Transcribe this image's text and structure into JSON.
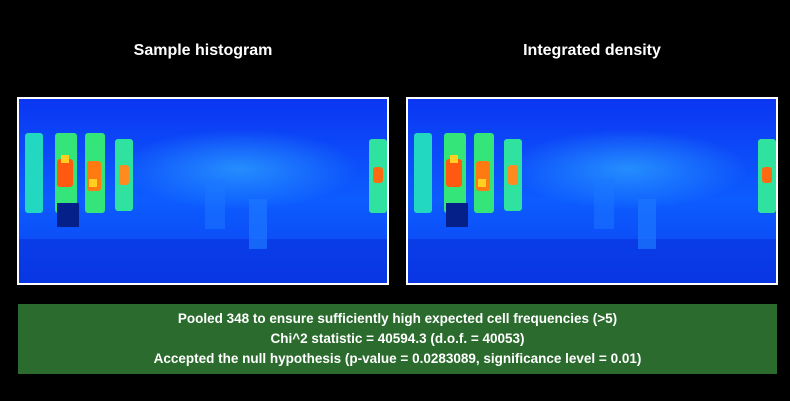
{
  "panels": {
    "left_title": "Sample histogram",
    "right_title": "Integrated density"
  },
  "colors": {
    "background": "#000000",
    "stats_box": "#2b6b2e",
    "heatmap_base": "#0a3cf0",
    "heatmap_mid": "#1fd0ff",
    "heatmap_high": "#39e85a",
    "heatmap_peak": "#ff3a10"
  },
  "stats": {
    "line1": "Pooled 348 to ensure sufficiently high expected cell frequencies (>5)",
    "line2": "Chi^2 statistic = 40594.3 (d.o.f. = 40053)",
    "line3": "Accepted the null hypothesis (p-value = 0.0283089, significance level = 0.01)"
  }
}
